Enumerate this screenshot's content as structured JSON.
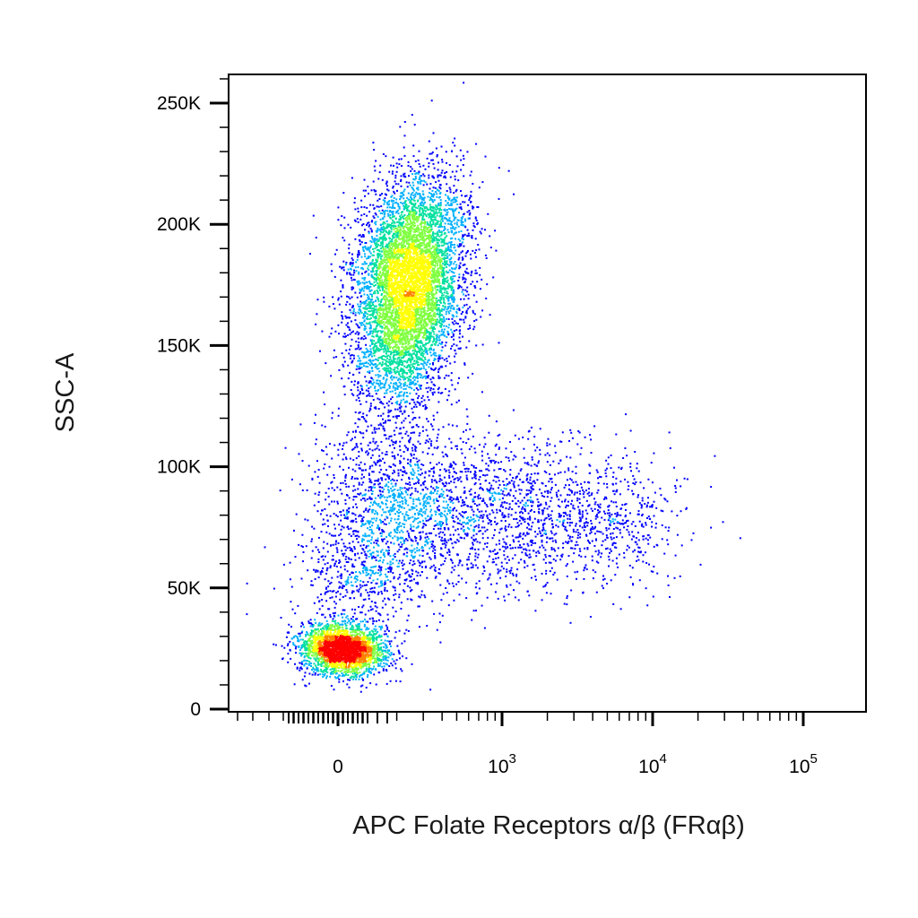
{
  "chart_data": {
    "type": "scatter",
    "subtype": "flow-cytometry-density-dot-plot",
    "xlabel": "APC Folate Receptors α/β (FRαβ)",
    "ylabel": "SSC-A",
    "x_scale": "biexponential",
    "y_scale": "linear",
    "xlim": [
      -200,
      200000
    ],
    "ylim": [
      0,
      262144
    ],
    "x_tick_labels": [
      {
        "value": 0,
        "base": "0",
        "exp": ""
      },
      {
        "value": 1000,
        "base": "10",
        "exp": "3"
      },
      {
        "value": 10000,
        "base": "10",
        "exp": "4"
      },
      {
        "value": 100000,
        "base": "10",
        "exp": "5"
      }
    ],
    "y_ticks": [
      0,
      50000,
      100000,
      150000,
      200000,
      250000
    ],
    "y_tick_labels": [
      "0",
      "50K",
      "100K",
      "150K",
      "200K",
      "250K"
    ],
    "grid": false,
    "legend": "none",
    "color_scale": [
      "#0000ff",
      "#00b0ff",
      "#00e0a0",
      "#80ff40",
      "#ffff00",
      "#ff8000",
      "#ff0000"
    ],
    "populations": [
      {
        "x_center": 0,
        "y_center": 25000,
        "x_spread": 30,
        "y_spread": 8000,
        "density": "high"
      },
      {
        "x_center": 200,
        "y_center": 170000,
        "x_spread": 100,
        "y_spread": 35000,
        "density": "high"
      },
      {
        "x_center": 1500,
        "y_center": 85000,
        "x_spread": 2500,
        "y_spread": 20000,
        "density": "low"
      }
    ]
  }
}
